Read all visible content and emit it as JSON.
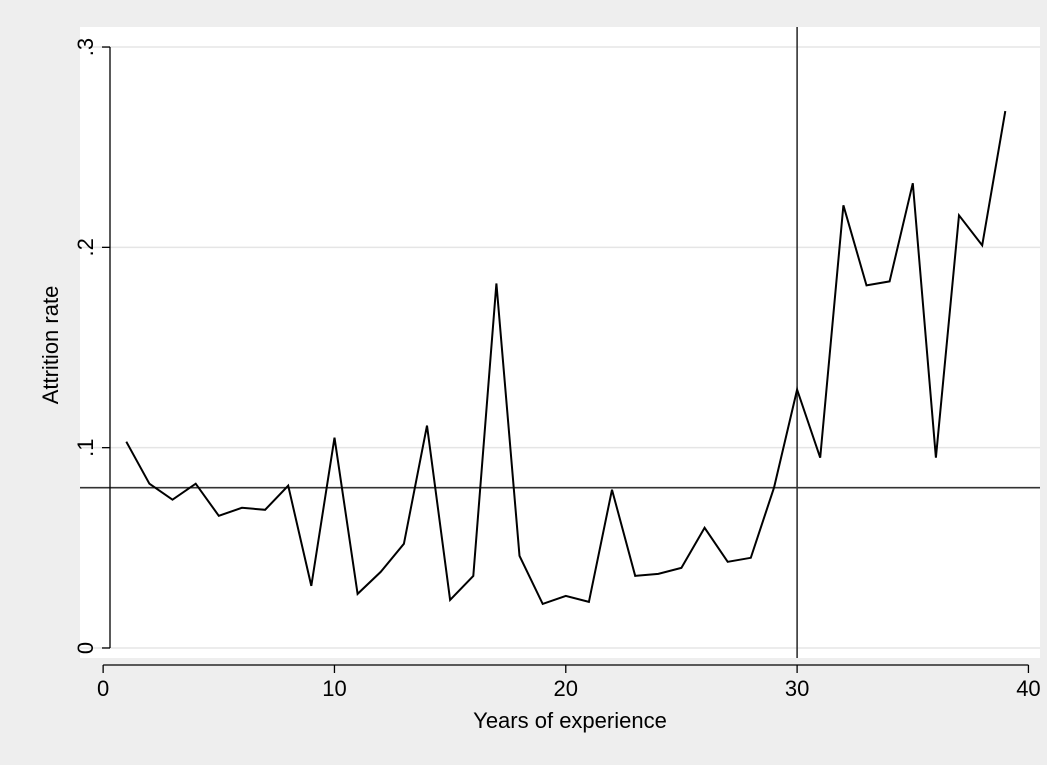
{
  "chart_data": {
    "type": "line",
    "title": "",
    "xlabel": "Years of experience",
    "ylabel": "Attrition rate",
    "xlim": [
      -1,
      40.5
    ],
    "ylim": [
      -0.005,
      0.31
    ],
    "xticks": [
      0,
      10,
      20,
      30,
      40
    ],
    "xtick_labels": [
      "0",
      "10",
      "20",
      "30",
      "40"
    ],
    "yticks": [
      0,
      0.1,
      0.2,
      0.3
    ],
    "ytick_labels": [
      "0",
      ".1",
      ".2",
      ".3"
    ],
    "grid": "horizontal",
    "legend": "none",
    "reference_lines": {
      "vertical_x": 30,
      "horizontal_y": 0.08
    },
    "colors": {
      "background": "#eeeeee",
      "plot_area": "#ffffff",
      "grid": "#e5e5e5",
      "line": "#000000",
      "reference": "#333333"
    },
    "series": [
      {
        "x": [
          1,
          2,
          3,
          4,
          5,
          6,
          7,
          8,
          9,
          10,
          11,
          12,
          13,
          14,
          15,
          16,
          17,
          18,
          19,
          20,
          21,
          22,
          23,
          24,
          25,
          26,
          27,
          28,
          29,
          30,
          31,
          32,
          33,
          34,
          35,
          36,
          37,
          38,
          39
        ],
        "values": [
          0.103,
          0.082,
          0.074,
          0.082,
          0.066,
          0.07,
          0.069,
          0.081,
          0.031,
          0.105,
          0.027,
          0.038,
          0.052,
          0.111,
          0.024,
          0.036,
          0.182,
          0.046,
          0.022,
          0.026,
          0.023,
          0.079,
          0.036,
          0.037,
          0.04,
          0.06,
          0.043,
          0.045,
          0.08,
          0.129,
          0.095,
          0.221,
          0.181,
          0.183,
          0.232,
          0.095,
          0.216,
          0.201,
          0.268
        ]
      }
    ]
  }
}
